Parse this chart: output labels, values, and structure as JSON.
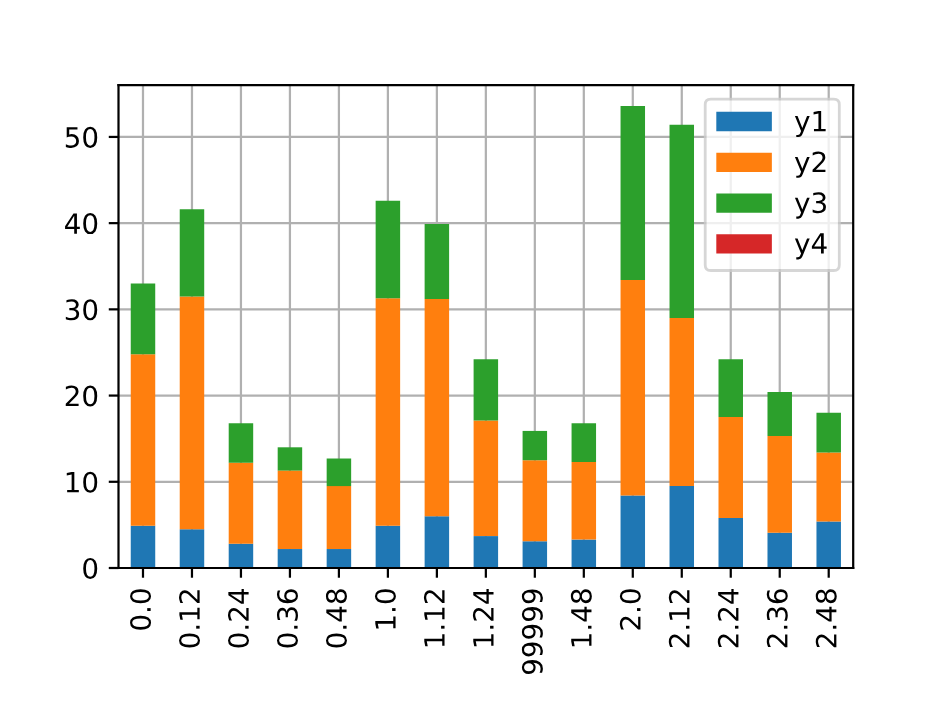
{
  "chart_data": {
    "type": "bar",
    "stacked": true,
    "categories": [
      "0.0",
      "0.12",
      "0.24",
      "0.36",
      "0.48",
      "1.0",
      "1.12",
      "1.24",
      "99999",
      "1.48",
      "2.0",
      "2.12",
      "2.24",
      "2.36",
      "2.48"
    ],
    "series": [
      {
        "name": "y1",
        "color": "#1f77b4",
        "values": [
          4.9,
          4.5,
          2.8,
          2.2,
          2.2,
          4.9,
          6.0,
          3.7,
          3.1,
          3.3,
          8.4,
          9.5,
          5.8,
          4.1,
          5.4
        ]
      },
      {
        "name": "y2",
        "color": "#ff7f0e",
        "values": [
          19.9,
          27.0,
          9.4,
          9.1,
          7.3,
          26.4,
          25.2,
          13.4,
          9.4,
          9.0,
          25.0,
          19.5,
          11.7,
          11.2,
          8.0
        ]
      },
      {
        "name": "y3",
        "color": "#2ca02c",
        "values": [
          8.2,
          10.1,
          4.6,
          2.7,
          3.2,
          11.3,
          8.7,
          7.1,
          3.4,
          4.5,
          20.2,
          22.4,
          6.7,
          5.1,
          4.6
        ]
      },
      {
        "name": "y4",
        "color": "#d62728",
        "values": [
          0,
          0,
          0,
          0,
          0,
          0,
          0,
          0,
          0,
          0,
          0,
          0,
          0,
          0,
          0
        ]
      }
    ],
    "ylim": [
      0,
      56
    ],
    "yticks": [
      0,
      10,
      20,
      30,
      40,
      50
    ],
    "grid": true,
    "legend": "top right"
  }
}
